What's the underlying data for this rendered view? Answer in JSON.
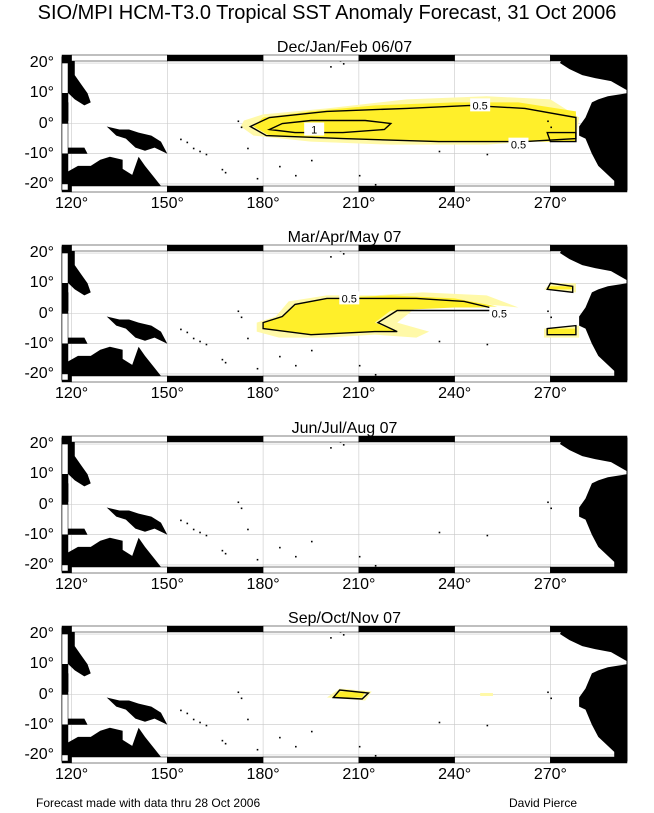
{
  "title": "SIO/MPI HCM-T3.0 Tropical SST Anomaly Forecast, 31 Oct 2006",
  "footer": {
    "left": "Forecast made with data thru 28 Oct 2006",
    "right": "David Pierce"
  },
  "axes": {
    "lon_ticks": [
      "120°",
      "150°",
      "180°",
      "210°",
      "240°",
      "270°"
    ],
    "lat_ticks": [
      "20°",
      "10°",
      "0°",
      "-10°",
      "-20°"
    ],
    "lon_range": [
      117,
      294
    ],
    "lat_range": [
      -22,
      22
    ]
  },
  "colors": {
    "anomaly_fill": "#ffef2a",
    "anomaly_fill_light": "#fff9a8",
    "land": "#000000",
    "grid": "#c8c8c8"
  },
  "panels": [
    {
      "season": "Dec/Jan/Feb 06/07",
      "contour_labels": [
        {
          "text": "0.5",
          "lon": 248,
          "lat": 6
        },
        {
          "text": "1",
          "lon": 196,
          "lat": -2
        },
        {
          "text": "0.5",
          "lon": 260,
          "lat": -7
        }
      ]
    },
    {
      "season": "Mar/Apr/May 07",
      "contour_labels": [
        {
          "text": "0.5",
          "lon": 207,
          "lat": 5
        },
        {
          "text": "0.5",
          "lon": 254,
          "lat": 0
        }
      ]
    },
    {
      "season": "Jun/Jul/Aug 07",
      "contour_labels": []
    },
    {
      "season": "Sep/Oct/Nov 07",
      "contour_labels": []
    }
  ]
}
